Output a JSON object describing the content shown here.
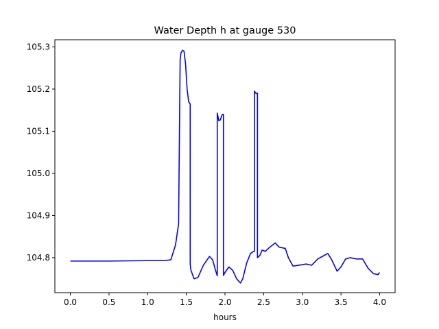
{
  "chart_data": {
    "type": "line",
    "title": "Water Depth h at gauge 530",
    "xlabel": "hours",
    "ylabel": "",
    "xlim": [
      -0.2,
      4.2
    ],
    "ylim": [
      104.717,
      105.317
    ],
    "xticks": [
      0.0,
      0.5,
      1.0,
      1.5,
      2.0,
      2.5,
      3.0,
      3.5,
      4.0
    ],
    "xtick_labels": [
      "0.0",
      "0.5",
      "1.0",
      "1.5",
      "2.0",
      "2.5",
      "3.0",
      "3.5",
      "4.0"
    ],
    "yticks": [
      104.8,
      104.9,
      105.0,
      105.1,
      105.2,
      105.3
    ],
    "ytick_labels": [
      "104.8",
      "104.9",
      "105.0",
      "105.1",
      "105.2",
      "105.3"
    ],
    "grid": false,
    "legend": "none",
    "series": [
      {
        "color": "#0000ff",
        "x": [
          0.0,
          0.5,
          1.0,
          1.2,
          1.3,
          1.36,
          1.4,
          1.42,
          1.43,
          1.45,
          1.47,
          1.49,
          1.51,
          1.53,
          1.55,
          1.55,
          1.56,
          1.6,
          1.65,
          1.72,
          1.8,
          1.84,
          1.87,
          1.89,
          1.9,
          1.9,
          1.92,
          1.94,
          1.96,
          1.97,
          1.98,
          1.98,
          2.0,
          2.05,
          2.1,
          2.15,
          2.2,
          2.23,
          2.28,
          2.33,
          2.37,
          2.38,
          2.38,
          2.4,
          2.42,
          2.42,
          2.45,
          2.48,
          2.52,
          2.58,
          2.65,
          2.7,
          2.78,
          2.82,
          2.88,
          2.95,
          3.05,
          3.12,
          3.2,
          3.28,
          3.33,
          3.38,
          3.45,
          3.5,
          3.56,
          3.62,
          3.7,
          3.78,
          3.85,
          3.92,
          3.98,
          4.0
        ],
        "y": [
          104.792,
          104.792,
          104.793,
          104.793,
          104.795,
          104.83,
          104.88,
          105.27,
          105.285,
          105.292,
          105.29,
          105.26,
          105.2,
          105.17,
          105.165,
          104.785,
          104.77,
          104.75,
          104.753,
          104.782,
          104.803,
          104.795,
          104.775,
          104.763,
          104.757,
          105.143,
          105.125,
          105.127,
          105.138,
          105.14,
          105.14,
          104.758,
          104.765,
          104.778,
          104.77,
          104.75,
          104.74,
          104.75,
          104.787,
          104.81,
          104.815,
          104.815,
          105.195,
          105.19,
          105.19,
          104.8,
          104.805,
          104.818,
          104.815,
          104.825,
          104.835,
          104.825,
          104.822,
          104.8,
          104.78,
          104.782,
          104.785,
          104.782,
          104.797,
          104.805,
          104.81,
          104.795,
          104.768,
          104.778,
          104.797,
          104.8,
          104.797,
          104.797,
          104.775,
          104.762,
          104.76,
          104.765
        ]
      }
    ]
  }
}
